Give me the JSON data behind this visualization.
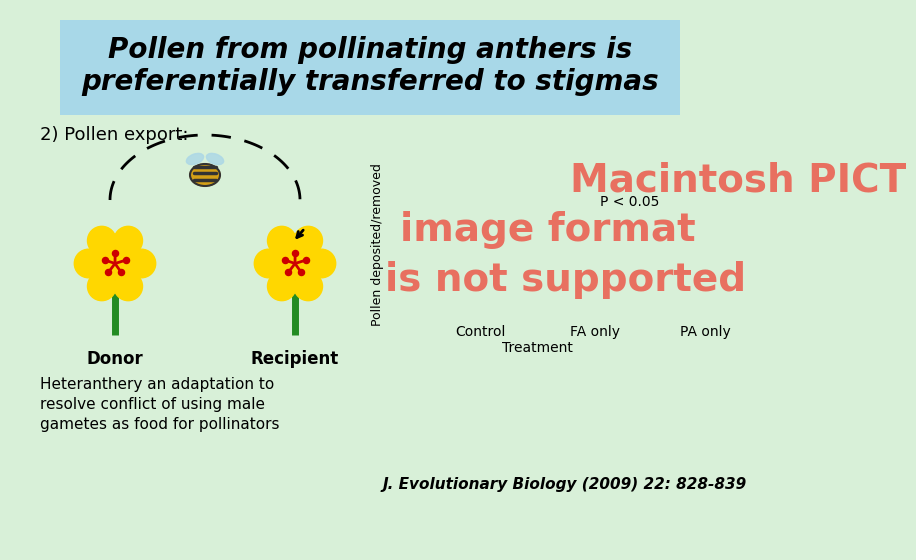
{
  "title_line1": "Pollen from pollinating anthers is",
  "title_line2": "preferentially transferred to stigmas",
  "title_fontsize": 20,
  "title_bg_color": "#a8d8e8",
  "bg_color": "#d8f0d8",
  "subtitle": "2) Pollen export:",
  "donor_label": "Donor",
  "recipient_label": "Recipient",
  "ylabel": "Pollen deposited/removed",
  "p_value_text": "P < 0.05",
  "x_labels": [
    "Control",
    "FA only",
    "PA only"
  ],
  "x_treatment": "Treatment",
  "citation": "J. Evolutionary Biology (2009) 22: 828-839",
  "pict_text_line1": "Macintosh PICT",
  "pict_text_line2": "image format",
  "pict_text_line3": "is not supported",
  "pict_color": "#e87060",
  "bottom_text_line1": "Heteranthery an adaptation to",
  "bottom_text_line2": "resolve conflict of using male",
  "bottom_text_line3": "gametes as food for pollinators"
}
